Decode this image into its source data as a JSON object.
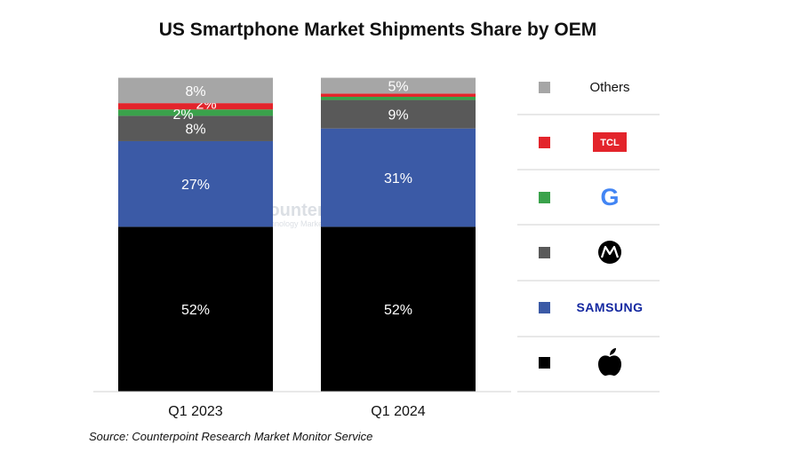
{
  "title": "US Smartphone Market Shipments Share by OEM",
  "source": "Source: Counterpoint Research Market Monitor Service",
  "watermark": {
    "name": "Counterpoint",
    "tagline": "Technology Market Research"
  },
  "colors": {
    "Apple": "#000000",
    "Samsung": "#3b5aa6",
    "Motorola": "#595959",
    "Google": "#3aa24b",
    "TCL": "#e3242b",
    "Others": "#a6a6a6"
  },
  "legend": [
    {
      "name": "Others",
      "label": "Others",
      "icon": "text",
      "color": "#a6a6a6"
    },
    {
      "name": "TCL",
      "label": "TCL",
      "icon": "tcl-logo",
      "color": "#e3242b"
    },
    {
      "name": "Google",
      "label": "G",
      "icon": "google-logo",
      "color": "#3aa24b"
    },
    {
      "name": "Motorola",
      "label": "",
      "icon": "motorola-logo",
      "color": "#595959"
    },
    {
      "name": "Samsung",
      "label": "SAMSUNG",
      "icon": "samsung-logo",
      "color": "#3b5aa6"
    },
    {
      "name": "Apple",
      "label": "",
      "icon": "apple-logo",
      "color": "#000000"
    }
  ],
  "chart_data": {
    "type": "bar",
    "stacked": true,
    "title": "US Smartphone Market Shipments Share by OEM",
    "categories": [
      "Q1 2023",
      "Q1 2024"
    ],
    "ylim": [
      0,
      100
    ],
    "series": [
      {
        "name": "Apple",
        "values": [
          52,
          52
        ],
        "labels": [
          "52%",
          "52%"
        ]
      },
      {
        "name": "Samsung",
        "values": [
          27,
          31
        ],
        "labels": [
          "27%",
          "31%"
        ]
      },
      {
        "name": "Motorola",
        "values": [
          8,
          9
        ],
        "labels": [
          "8%",
          "9%"
        ]
      },
      {
        "name": "Google",
        "values": [
          2,
          1
        ],
        "labels": [
          "2%",
          ""
        ]
      },
      {
        "name": "TCL",
        "values": [
          2,
          1
        ],
        "labels": [
          "2%",
          ""
        ]
      },
      {
        "name": "Others",
        "values": [
          8,
          5
        ],
        "labels": [
          "8%",
          "5%"
        ]
      }
    ]
  }
}
